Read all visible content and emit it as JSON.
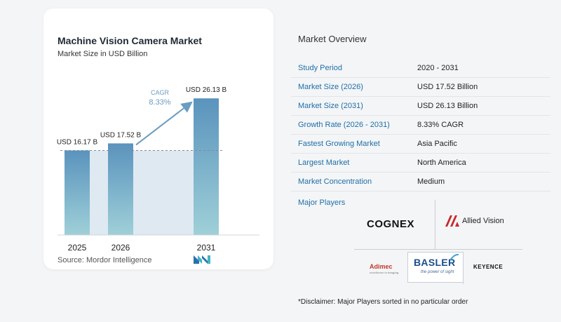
{
  "chart_data": {
    "type": "bar",
    "title": "Machine Vision Camera Market",
    "subtitle": "Market Size in USD Billion",
    "categories": [
      "2025",
      "2026",
      "2031"
    ],
    "values": [
      16.17,
      17.52,
      26.13
    ],
    "data_labels": [
      "USD 16.17 B",
      "USD 17.52 B",
      "USD 26.13 B"
    ],
    "annotation": {
      "label": "CAGR",
      "value": "8.33%"
    },
    "colors": {
      "bar_top": "#5a93bd",
      "bar_bottom": "#9fd0d8",
      "shade": "#dfe9f2",
      "arrow": "#6b9cc2"
    }
  },
  "source": "Source:  Mordor Intelligence",
  "overview": {
    "title": "Market Overview",
    "rows": [
      {
        "label": "Study Period",
        "value": "2020 - 2031"
      },
      {
        "label": "Market Size (2026)",
        "value": "USD 17.52 Billion"
      },
      {
        "label": "Market Size (2031)",
        "value": "USD 26.13 Billion"
      },
      {
        "label": "Growth Rate (2026 - 2031)",
        "value": "8.33% CAGR"
      },
      {
        "label": "Fastest Growing Market",
        "value": "Asia Pacific"
      },
      {
        "label": "Largest Market",
        "value": "North America"
      },
      {
        "label": "Market Concentration",
        "value": "Medium"
      }
    ]
  },
  "players": {
    "title": "Major Players",
    "cognex": "COGNEX",
    "allied": "Allied Vision",
    "basler": "BASLER",
    "basler_tagline": "the power of sight",
    "adimec": "Adimec",
    "adimec_tagline": "excellence in imaging",
    "keyence": "KEYENCE"
  },
  "disclaimer": "*Disclaimer: Major Players sorted in no particular order"
}
